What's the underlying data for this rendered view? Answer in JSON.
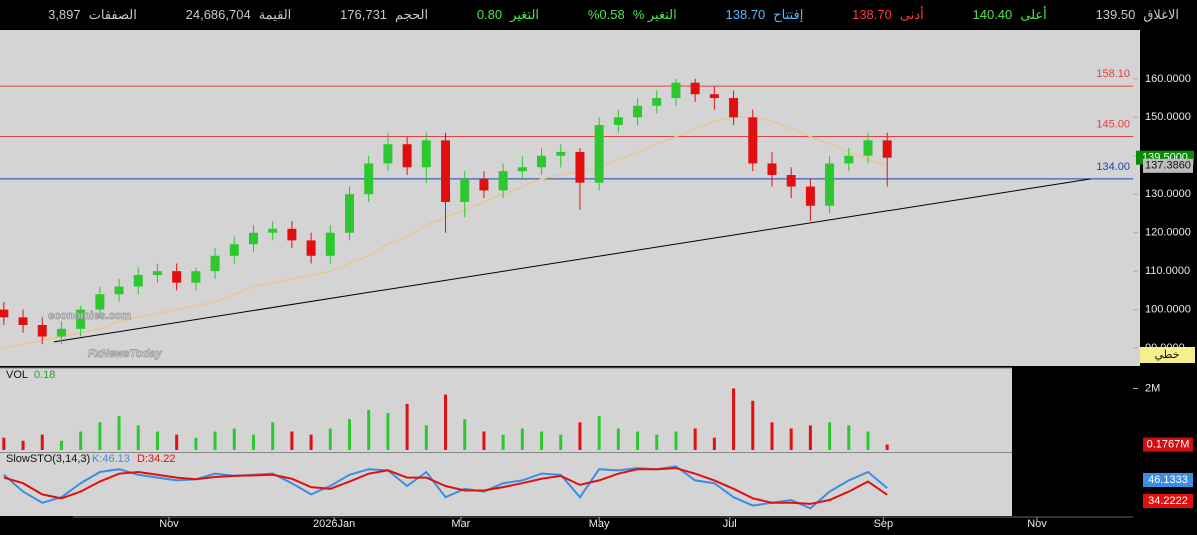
{
  "header": {
    "items": [
      {
        "label": "الاغلاق",
        "value": "139.50",
        "color": "#c8c8c8"
      },
      {
        "label": "أعلى",
        "value": "140.40",
        "color": "#4ee44e"
      },
      {
        "label": "أدنى",
        "value": "138.70",
        "color": "#ff3b3b"
      },
      {
        "label": "إفتتاح",
        "value": "138.70",
        "color": "#5cb8ff"
      },
      {
        "label": "التغير %",
        "value": "0.58%",
        "color": "#4ee44e"
      },
      {
        "label": "التغير",
        "value": "0.80",
        "color": "#4ee44e"
      },
      {
        "label": "الحجم",
        "value": "176,731",
        "color": "#c8c8c8"
      },
      {
        "label": "القيمة",
        "value": "24,686,704",
        "color": "#c8c8c8"
      },
      {
        "label": "الصفقات",
        "value": "3,897",
        "color": "#c8c8c8"
      }
    ]
  },
  "watermark": [
    "economies.com",
    "FxNewsToday"
  ],
  "button": "خطي",
  "chart_data": [
    {
      "type": "candlestick",
      "x": [
        1,
        6,
        11,
        16,
        21,
        26,
        31,
        36,
        41,
        46,
        51,
        56,
        61,
        66,
        71,
        76,
        81,
        86,
        91,
        96,
        101,
        106,
        111,
        116,
        121,
        126,
        131,
        136,
        141,
        146,
        151,
        156,
        161,
        166,
        171,
        176,
        181,
        186,
        191,
        196,
        201,
        206,
        211,
        216,
        221,
        226,
        231
      ],
      "open": [
        100,
        98,
        96,
        93,
        95,
        100,
        104,
        106,
        109,
        110,
        107,
        110,
        114,
        117,
        120,
        121,
        118,
        114,
        120,
        130,
        138,
        143,
        137,
        144,
        128,
        134,
        131,
        136,
        137,
        140,
        141,
        133,
        148,
        150,
        153,
        155,
        159,
        156,
        155,
        150,
        138,
        135,
        132,
        127,
        138,
        140,
        144
      ],
      "high": [
        102,
        100,
        98,
        97,
        101,
        106,
        108,
        111,
        112,
        112,
        111,
        116,
        119,
        122,
        123,
        123,
        120,
        122,
        132,
        140,
        146,
        145,
        146,
        146,
        136,
        136,
        138,
        140,
        142,
        143,
        142,
        150,
        152,
        155,
        157,
        160,
        160,
        158,
        157,
        152,
        141,
        137,
        134,
        140,
        142,
        146,
        146
      ],
      "low": [
        96,
        94,
        91,
        91,
        93,
        98,
        102,
        104,
        107,
        105,
        105,
        108,
        112,
        115,
        118,
        116,
        112,
        112,
        118,
        128,
        136,
        135,
        133,
        120,
        124,
        129,
        129,
        134,
        135,
        137,
        126,
        131,
        146,
        148,
        151,
        153,
        154,
        152,
        148,
        136,
        132,
        129,
        123,
        125,
        136,
        138,
        132
      ],
      "close": [
        98,
        96,
        93,
        95,
        100,
        104,
        106,
        109,
        110,
        107,
        110,
        114,
        117,
        120,
        121,
        118,
        114,
        120,
        130,
        138,
        143,
        137,
        144,
        128,
        134,
        131,
        136,
        137,
        140,
        141,
        133,
        148,
        150,
        153,
        155,
        159,
        156,
        155,
        150,
        138,
        135,
        132,
        127,
        138,
        140,
        144,
        139.5
      ],
      "up_color": "#2fc72f",
      "down_color": "#e01010",
      "ma": {
        "color": "#e6c88e",
        "values": [
          90,
          91,
          92,
          93,
          94,
          95,
          97,
          98,
          99,
          100,
          101,
          102,
          104,
          106,
          107,
          108,
          109,
          110,
          112,
          114,
          117,
          119,
          122,
          124,
          126,
          128,
          130,
          132,
          134,
          135,
          136,
          137,
          139,
          141,
          143,
          145,
          147,
          149,
          150,
          150,
          149,
          147,
          145,
          143,
          141,
          139,
          137.386
        ],
        "last_label": "137.3860"
      },
      "hlines": [
        {
          "value": 158.1,
          "label": "158.10",
          "color": "#e04040"
        },
        {
          "value": 145,
          "label": "145.00",
          "color": "#e04040"
        },
        {
          "value": 134,
          "label": "134.00",
          "color": "#2040b0"
        }
      ],
      "trendline": {
        "x": [
          14,
          284
        ],
        "y": [
          91.6,
          134
        ],
        "color": "#000000"
      },
      "last_price": {
        "value": 139.5,
        "label": "139.5000",
        "color": "#0a8a0a"
      },
      "xlim": [
        0,
        295
      ],
      "xticks": [
        {
          "value": 44,
          "label": "Nov"
        },
        {
          "value": 87,
          "label": "2026Jan"
        },
        {
          "value": 120,
          "label": "Mar"
        },
        {
          "value": 156,
          "label": "May"
        },
        {
          "value": 190,
          "label": "Jul"
        },
        {
          "value": 230,
          "label": "Sep"
        },
        {
          "value": 270,
          "label": "Nov"
        }
      ],
      "ylim": [
        85.6,
        172.7
      ],
      "yticks": [
        {
          "value": 90,
          "label": "90.0000"
        },
        {
          "value": 100,
          "label": "100.0000"
        },
        {
          "value": 110,
          "label": "110.0000"
        },
        {
          "value": 120,
          "label": "120.0000"
        },
        {
          "value": 130,
          "label": "130.0000"
        },
        {
          "value": 140,
          "label": "140.0000"
        },
        {
          "value": 150,
          "label": "150.0000"
        },
        {
          "value": 160,
          "label": "160.0000"
        }
      ]
    },
    {
      "type": "bar",
      "title": "VOL",
      "title_value": "0.18",
      "values": [
        0.4,
        0.3,
        0.5,
        0.3,
        0.6,
        0.9,
        1.1,
        0.8,
        0.6,
        0.5,
        0.4,
        0.6,
        0.7,
        0.5,
        0.9,
        0.6,
        0.5,
        0.7,
        1.0,
        1.3,
        1.2,
        1.5,
        0.8,
        1.8,
        1.0,
        0.6,
        0.5,
        0.7,
        0.6,
        0.5,
        0.9,
        1.1,
        0.7,
        0.6,
        0.5,
        0.6,
        0.7,
        0.4,
        2.0,
        1.6,
        0.9,
        0.7,
        0.8,
        0.9,
        0.8,
        0.6,
        0.1767
      ],
      "last_label": {
        "value": 0.1767,
        "label": "0.1767M",
        "color": "#d01010"
      },
      "ylim": [
        0,
        2.6
      ],
      "yticks": [
        {
          "value": 2,
          "label": "2M"
        }
      ]
    },
    {
      "type": "line",
      "title": "SlowSTO(3,14,3)",
      "series": [
        {
          "name": "K:46.13",
          "color": "#3a8ee6",
          "last_label": "46.1333",
          "values": [
            70,
            40,
            20,
            30,
            55,
            75,
            80,
            70,
            65,
            60,
            62,
            72,
            68,
            70,
            72,
            55,
            35,
            50,
            70,
            80,
            78,
            50,
            75,
            30,
            45,
            40,
            55,
            60,
            72,
            70,
            30,
            80,
            78,
            82,
            80,
            85,
            60,
            55,
            30,
            15,
            20,
            25,
            10,
            40,
            60,
            75,
            46.1333
          ]
        },
        {
          "name": "D:34.22",
          "color": "#e01010",
          "last_label": "34.2222",
          "values": [
            65,
            55,
            35,
            28,
            40,
            58,
            72,
            75,
            70,
            65,
            62,
            66,
            68,
            69,
            70,
            63,
            48,
            45,
            58,
            72,
            78,
            65,
            65,
            50,
            42,
            42,
            48,
            55,
            63,
            68,
            52,
            60,
            72,
            80,
            80,
            82,
            72,
            60,
            45,
            28,
            20,
            20,
            18,
            25,
            40,
            58,
            34.2222
          ]
        }
      ],
      "ylim": [
        0,
        100
      ]
    }
  ]
}
